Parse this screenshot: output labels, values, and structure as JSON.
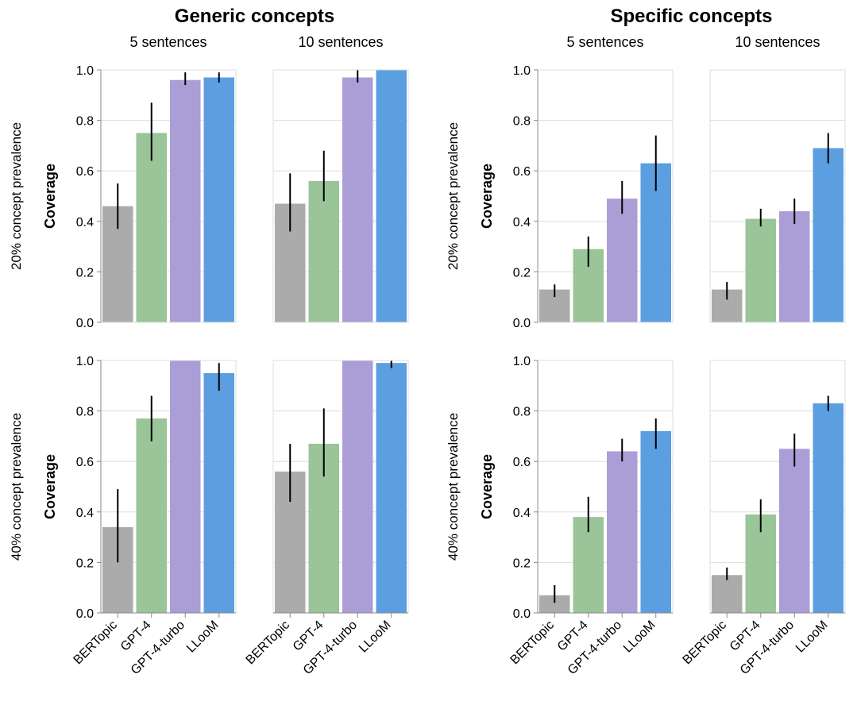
{
  "chart_data": {
    "type": "bar",
    "ylabel": "Coverage",
    "ylim": [
      0,
      1
    ],
    "yticks": [
      "0.0",
      "0.2",
      "0.4",
      "0.6",
      "0.8",
      "1.0"
    ],
    "categories": [
      "BERTopic",
      "GPT-4",
      "GPT-4-turbo",
      "LLooM"
    ],
    "colors": [
      "#ababab",
      "#99c598",
      "#ab9ed6",
      "#5b9fe0"
    ],
    "grid": true,
    "groups": [
      {
        "title": "Generic concepts",
        "columns": [
          "5 sentences",
          "10 sentences"
        ],
        "rows": [
          {
            "label": "20% concept prevalence",
            "panels": [
              {
                "values": [
                  0.46,
                  0.75,
                  0.96,
                  0.97
                ],
                "err_low": [
                  0.37,
                  0.64,
                  0.94,
                  0.95
                ],
                "err_high": [
                  0.55,
                  0.87,
                  0.99,
                  0.99
                ]
              },
              {
                "values": [
                  0.47,
                  0.56,
                  0.97,
                  1.0
                ],
                "err_low": [
                  0.36,
                  0.48,
                  0.95,
                  1.0
                ],
                "err_high": [
                  0.59,
                  0.68,
                  1.0,
                  1.0
                ]
              }
            ]
          },
          {
            "label": "40% concept prevalence",
            "panels": [
              {
                "values": [
                  0.34,
                  0.77,
                  1.0,
                  0.95
                ],
                "err_low": [
                  0.2,
                  0.68,
                  1.0,
                  0.88
                ],
                "err_high": [
                  0.49,
                  0.86,
                  1.0,
                  0.99
                ]
              },
              {
                "values": [
                  0.56,
                  0.67,
                  1.0,
                  0.99
                ],
                "err_low": [
                  0.44,
                  0.54,
                  1.0,
                  0.97
                ],
                "err_high": [
                  0.67,
                  0.81,
                  1.0,
                  1.0
                ]
              }
            ]
          }
        ]
      },
      {
        "title": "Specific concepts",
        "columns": [
          "5 sentences",
          "10 sentences"
        ],
        "rows": [
          {
            "label": "20% concept prevalence",
            "panels": [
              {
                "values": [
                  0.13,
                  0.29,
                  0.49,
                  0.63
                ],
                "err_low": [
                  0.1,
                  0.22,
                  0.43,
                  0.52
                ],
                "err_high": [
                  0.15,
                  0.34,
                  0.56,
                  0.74
                ]
              },
              {
                "values": [
                  0.13,
                  0.41,
                  0.44,
                  0.69
                ],
                "err_low": [
                  0.09,
                  0.38,
                  0.39,
                  0.63
                ],
                "err_high": [
                  0.16,
                  0.45,
                  0.49,
                  0.75
                ]
              }
            ]
          },
          {
            "label": "40% concept prevalence",
            "panels": [
              {
                "values": [
                  0.07,
                  0.38,
                  0.64,
                  0.72
                ],
                "err_low": [
                  0.04,
                  0.32,
                  0.6,
                  0.65
                ],
                "err_high": [
                  0.11,
                  0.46,
                  0.69,
                  0.77
                ]
              },
              {
                "values": [
                  0.15,
                  0.39,
                  0.65,
                  0.83
                ],
                "err_low": [
                  0.13,
                  0.32,
                  0.58,
                  0.8
                ],
                "err_high": [
                  0.18,
                  0.45,
                  0.71,
                  0.86
                ]
              }
            ]
          }
        ]
      }
    ]
  }
}
